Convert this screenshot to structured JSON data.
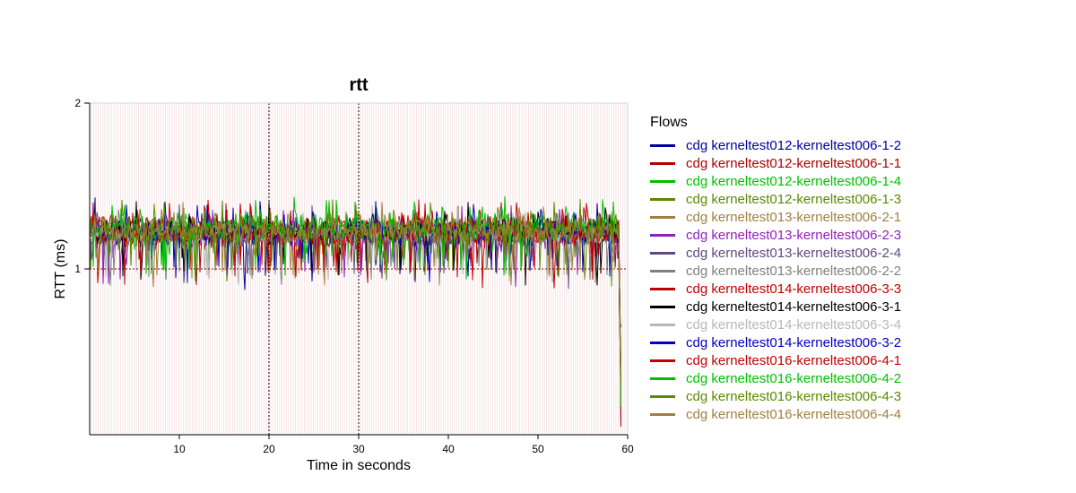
{
  "chart_data": {
    "type": "line",
    "title": "rtt",
    "xlabel": "Time in seconds",
    "ylabel": "RTT (ms)",
    "xlim": [
      0,
      60
    ],
    "ylim": [
      0,
      2
    ],
    "xticks": [
      10,
      20,
      30,
      40,
      50,
      60
    ],
    "yticks": [
      1,
      2
    ],
    "grid": true,
    "legend_title": "Flows",
    "legend_position": "right",
    "series": [
      {
        "name": "cdg kerneltest012-kerneltest006-1-2",
        "color": "#0000a0",
        "mean": 1.22,
        "spread": 0.13
      },
      {
        "name": "cdg kerneltest012-kerneltest006-1-1",
        "color": "#b00000",
        "mean": 1.24,
        "spread": 0.12
      },
      {
        "name": "cdg kerneltest012-kerneltest006-1-4",
        "color": "#00c000",
        "mean": 1.26,
        "spread": 0.12
      },
      {
        "name": "cdg kerneltest012-kerneltest006-1-3",
        "color": "#5a8a00",
        "mean": 1.23,
        "spread": 0.12
      },
      {
        "name": "cdg kerneltest013-kerneltest006-2-1",
        "color": "#a08040",
        "mean": 1.22,
        "spread": 0.11
      },
      {
        "name": "cdg kerneltest013-kerneltest006-2-3",
        "color": "#9020c0",
        "mean": 1.2,
        "spread": 0.12
      },
      {
        "name": "cdg kerneltest013-kerneltest006-2-4",
        "color": "#604880",
        "mean": 1.21,
        "spread": 0.11
      },
      {
        "name": "cdg kerneltest013-kerneltest006-2-2",
        "color": "#808080",
        "mean": 1.22,
        "spread": 0.1
      },
      {
        "name": "cdg kerneltest014-kerneltest006-3-3",
        "color": "#c00000",
        "mean": 1.24,
        "spread": 0.12
      },
      {
        "name": "cdg kerneltest014-kerneltest006-3-1",
        "color": "#000000",
        "mean": 1.23,
        "spread": 0.11
      },
      {
        "name": "cdg kerneltest014-kerneltest006-3-4",
        "color": "#b8b8b8",
        "mean": 1.22,
        "spread": 0.1
      },
      {
        "name": "cdg kerneltest014-kerneltest006-3-2",
        "color": "#0000c0",
        "mean": 1.23,
        "spread": 0.12
      },
      {
        "name": "cdg kerneltest016-kerneltest006-4-1",
        "color": "#c00000",
        "mean": 1.22,
        "spread": 0.12
      },
      {
        "name": "cdg kerneltest016-kerneltest006-4-2",
        "color": "#00c000",
        "mean": 1.25,
        "spread": 0.12
      },
      {
        "name": "cdg kerneltest016-kerneltest006-4-3",
        "color": "#5a8a00",
        "mean": 1.24,
        "spread": 0.12
      },
      {
        "name": "cdg kerneltest016-kerneltest006-4-4",
        "color": "#a08040",
        "mean": 1.23,
        "spread": 0.11
      }
    ]
  }
}
